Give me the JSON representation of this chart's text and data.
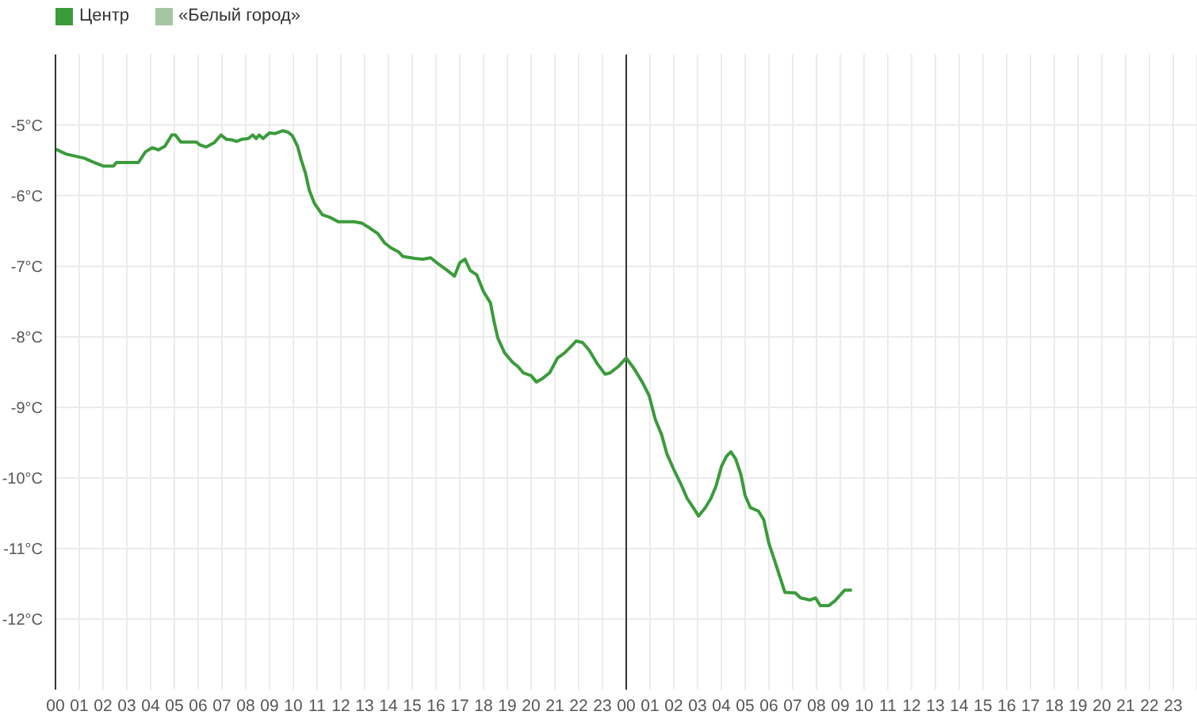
{
  "chart_data": {
    "type": "line",
    "x": [
      0,
      0.45,
      1.22,
      1.56,
      2.0,
      2.44,
      2.56,
      3.49,
      3.78,
      4.07,
      4.33,
      4.6,
      4.89,
      5.04,
      5.27,
      5.93,
      6.07,
      6.33,
      6.67,
      6.96,
      7.18,
      7.44,
      7.62,
      7.84,
      8.11,
      8.29,
      8.44,
      8.56,
      8.73,
      9.0,
      9.22,
      9.56,
      9.78,
      9.96,
      10.18,
      10.33,
      10.51,
      10.67,
      10.89,
      11.22,
      11.56,
      11.89,
      12.56,
      12.89,
      13.22,
      13.56,
      13.84,
      14.11,
      14.44,
      14.6,
      15.11,
      15.44,
      15.78,
      16.11,
      16.44,
      16.78,
      17.0,
      17.22,
      17.44,
      17.71,
      18.0,
      18.29,
      18.44,
      18.6,
      18.89,
      19.22,
      19.44,
      19.67,
      20.0,
      20.22,
      20.44,
      20.78,
      21.11,
      21.4,
      21.67,
      21.89,
      22.16,
      22.44,
      22.78,
      23.11,
      23.33,
      23.67,
      24.0,
      24.33,
      24.67,
      24.96,
      25.22,
      25.49,
      25.71,
      26.0,
      26.33,
      26.56,
      26.82,
      27.04,
      27.33,
      27.56,
      27.78,
      28.0,
      28.22,
      28.4,
      28.6,
      28.82,
      29.0,
      29.22,
      29.56,
      29.78,
      30.0,
      30.22,
      30.44,
      30.67,
      31.11,
      31.33,
      31.73,
      31.96,
      32.16,
      32.51,
      32.78,
      33.18,
      33.49
    ],
    "series": [
      {
        "name": "Центр",
        "color": "#3a9b3a",
        "values": [
          -5.34,
          -5.41,
          -5.47,
          -5.52,
          -5.58,
          -5.58,
          -5.53,
          -5.53,
          -5.38,
          -5.32,
          -5.35,
          -5.3,
          -5.14,
          -5.14,
          -5.24,
          -5.24,
          -5.28,
          -5.31,
          -5.25,
          -5.14,
          -5.2,
          -5.21,
          -5.23,
          -5.2,
          -5.19,
          -5.14,
          -5.19,
          -5.14,
          -5.19,
          -5.11,
          -5.12,
          -5.08,
          -5.1,
          -5.15,
          -5.3,
          -5.49,
          -5.68,
          -5.92,
          -6.11,
          -6.27,
          -6.31,
          -6.37,
          -6.37,
          -6.39,
          -6.46,
          -6.54,
          -6.67,
          -6.74,
          -6.8,
          -6.86,
          -6.89,
          -6.9,
          -6.88,
          -6.97,
          -7.05,
          -7.14,
          -6.95,
          -6.9,
          -7.06,
          -7.12,
          -7.36,
          -7.52,
          -7.78,
          -8.02,
          -8.23,
          -8.36,
          -8.42,
          -8.51,
          -8.55,
          -8.64,
          -8.6,
          -8.51,
          -8.3,
          -8.23,
          -8.14,
          -8.06,
          -8.08,
          -8.19,
          -8.38,
          -8.53,
          -8.51,
          -8.42,
          -8.3,
          -8.45,
          -8.64,
          -8.83,
          -9.17,
          -9.39,
          -9.66,
          -9.88,
          -10.11,
          -10.29,
          -10.42,
          -10.54,
          -10.42,
          -10.29,
          -10.11,
          -9.84,
          -9.69,
          -9.63,
          -9.73,
          -9.95,
          -10.25,
          -10.42,
          -10.47,
          -10.59,
          -10.93,
          -11.15,
          -11.38,
          -11.62,
          -11.63,
          -11.7,
          -11.73,
          -11.7,
          -11.81,
          -11.81,
          -11.74,
          -11.59,
          -11.59
        ]
      },
      {
        "name": "«Белый город»",
        "color": "#a3c7a3",
        "values": [
          null,
          null,
          null,
          null,
          null,
          null,
          null,
          null,
          null,
          null,
          null,
          null,
          null,
          null,
          null,
          null,
          null,
          null,
          null,
          null,
          null,
          null,
          null,
          null,
          null,
          null,
          null,
          null,
          null,
          null,
          null,
          null,
          null,
          null,
          null,
          null,
          null,
          null,
          null,
          null,
          null,
          null,
          null,
          null,
          null,
          null,
          null,
          null,
          null,
          null,
          null,
          null,
          null,
          null,
          null,
          null,
          null,
          null,
          null,
          null,
          null,
          null,
          null,
          null,
          null,
          null,
          null,
          null,
          null,
          null,
          null,
          null,
          null,
          null,
          null,
          null,
          null,
          null,
          null,
          null,
          null,
          null,
          null,
          null,
          null,
          null,
          null,
          null,
          null,
          null,
          null,
          null,
          null,
          null,
          null,
          null,
          null,
          null,
          null,
          null,
          null,
          null,
          null,
          null,
          null,
          null,
          null,
          null,
          null,
          null,
          null,
          null,
          null,
          null,
          null,
          null,
          null,
          null,
          null
        ]
      }
    ],
    "xlim": [
      0,
      48
    ],
    "xticks": [
      {
        "value": 0,
        "label": "00"
      },
      {
        "value": 1,
        "label": "01"
      },
      {
        "value": 2,
        "label": "02"
      },
      {
        "value": 3,
        "label": "03"
      },
      {
        "value": 4,
        "label": "04"
      },
      {
        "value": 5,
        "label": "05"
      },
      {
        "value": 6,
        "label": "06"
      },
      {
        "value": 7,
        "label": "07"
      },
      {
        "value": 8,
        "label": "08"
      },
      {
        "value": 9,
        "label": "09"
      },
      {
        "value": 10,
        "label": "10"
      },
      {
        "value": 11,
        "label": "11"
      },
      {
        "value": 12,
        "label": "12"
      },
      {
        "value": 13,
        "label": "13"
      },
      {
        "value": 14,
        "label": "14"
      },
      {
        "value": 15,
        "label": "15"
      },
      {
        "value": 16,
        "label": "16"
      },
      {
        "value": 17,
        "label": "17"
      },
      {
        "value": 18,
        "label": "18"
      },
      {
        "value": 19,
        "label": "19"
      },
      {
        "value": 20,
        "label": "20"
      },
      {
        "value": 21,
        "label": "21"
      },
      {
        "value": 22,
        "label": "22"
      },
      {
        "value": 23,
        "label": "23"
      },
      {
        "value": 24,
        "label": "00"
      },
      {
        "value": 25,
        "label": "01"
      },
      {
        "value": 26,
        "label": "02"
      },
      {
        "value": 27,
        "label": "03"
      },
      {
        "value": 28,
        "label": "04"
      },
      {
        "value": 29,
        "label": "05"
      },
      {
        "value": 30,
        "label": "06"
      },
      {
        "value": 31,
        "label": "07"
      },
      {
        "value": 32,
        "label": "08"
      },
      {
        "value": 33,
        "label": "09"
      },
      {
        "value": 34,
        "label": "10"
      },
      {
        "value": 35,
        "label": "11"
      },
      {
        "value": 36,
        "label": "12"
      },
      {
        "value": 37,
        "label": "13"
      },
      {
        "value": 38,
        "label": "14"
      },
      {
        "value": 39,
        "label": "15"
      },
      {
        "value": 40,
        "label": "16"
      },
      {
        "value": 41,
        "label": "17"
      },
      {
        "value": 42,
        "label": "18"
      },
      {
        "value": 43,
        "label": "19"
      },
      {
        "value": 44,
        "label": "20"
      },
      {
        "value": 45,
        "label": "21"
      },
      {
        "value": 46,
        "label": "22"
      },
      {
        "value": 47,
        "label": "23"
      },
      {
        "value": 48,
        "label": null
      }
    ],
    "ylim": [
      -13,
      -4
    ],
    "yticks": [
      {
        "value": -5,
        "label": "-5°C"
      },
      {
        "value": -6,
        "label": "-6°C"
      },
      {
        "value": -7,
        "label": "-7°C"
      },
      {
        "value": -8,
        "label": "-8°C"
      },
      {
        "value": -9,
        "label": "-9°C"
      },
      {
        "value": -10,
        "label": "-10°C"
      },
      {
        "value": -11,
        "label": "-11°C"
      },
      {
        "value": -12,
        "label": "-12°C"
      }
    ],
    "ref_lines": [
      {
        "axis": "x",
        "value": 24,
        "color": "#333333"
      }
    ],
    "grid": true,
    "legend": "top left",
    "marker": "none"
  }
}
